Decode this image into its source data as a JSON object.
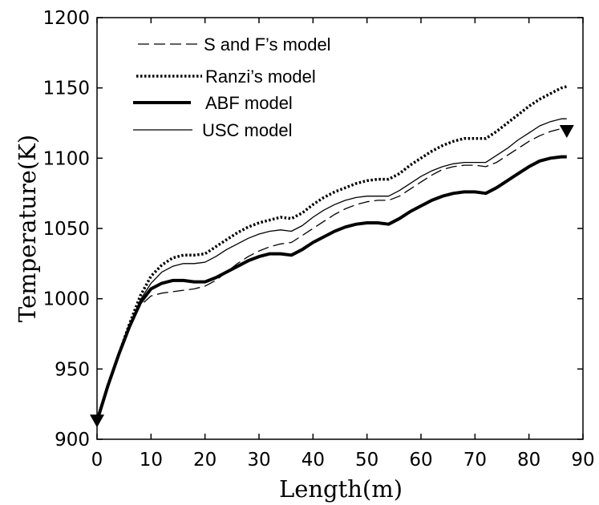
{
  "chart_data": {
    "type": "line",
    "xlabel": "Length(m)",
    "ylabel": "Temperature(K)",
    "xlim": [
      0,
      90
    ],
    "ylim": [
      900,
      1200
    ],
    "x_ticks": [
      0,
      10,
      20,
      30,
      40,
      50,
      60,
      70,
      80,
      90
    ],
    "y_ticks": [
      900,
      950,
      1000,
      1050,
      1100,
      1150,
      1200
    ],
    "grid": false,
    "legend_position": "top-left",
    "series": [
      {
        "name": "S and F’s model",
        "style": "dashed",
        "x": [
          0,
          2,
          4,
          6,
          8,
          10,
          12,
          14,
          16,
          18,
          20,
          22,
          24,
          26,
          28,
          30,
          32,
          34,
          36,
          38,
          40,
          42,
          44,
          46,
          48,
          50,
          52,
          54,
          56,
          58,
          60,
          62,
          64,
          66,
          68,
          70,
          72,
          74,
          76,
          78,
          80,
          82,
          84,
          86,
          87
        ],
        "y": [
          913,
          938,
          960,
          980,
          995,
          1002,
          1004,
          1005,
          1006,
          1007,
          1009,
          1013,
          1019,
          1025,
          1030,
          1034,
          1037,
          1039,
          1040,
          1045,
          1050,
          1055,
          1060,
          1064,
          1067,
          1069,
          1070,
          1070,
          1073,
          1078,
          1083,
          1088,
          1092,
          1094,
          1095,
          1095,
          1094,
          1097,
          1102,
          1107,
          1112,
          1116,
          1119,
          1121,
          1121
        ]
      },
      {
        "name": "Ranzi’s model",
        "style": "dotted",
        "x": [
          0,
          2,
          4,
          6,
          8,
          10,
          12,
          14,
          16,
          18,
          20,
          22,
          24,
          26,
          28,
          30,
          32,
          34,
          36,
          38,
          40,
          42,
          44,
          46,
          48,
          50,
          52,
          54,
          56,
          58,
          60,
          62,
          64,
          66,
          68,
          70,
          72,
          74,
          76,
          78,
          80,
          82,
          84,
          86,
          87
        ],
        "y": [
          913,
          938,
          960,
          982,
          1002,
          1016,
          1024,
          1029,
          1031,
          1031,
          1032,
          1037,
          1042,
          1047,
          1051,
          1054,
          1056,
          1058,
          1057,
          1061,
          1067,
          1072,
          1076,
          1079,
          1082,
          1084,
          1085,
          1085,
          1089,
          1095,
          1100,
          1105,
          1109,
          1112,
          1114,
          1114,
          1114,
          1119,
          1125,
          1131,
          1137,
          1142,
          1146,
          1150,
          1151
        ]
      },
      {
        "name": "ABF model",
        "style": "bold",
        "x": [
          0,
          2,
          4,
          6,
          8,
          10,
          12,
          14,
          16,
          18,
          20,
          22,
          24,
          26,
          28,
          30,
          32,
          34,
          36,
          38,
          40,
          42,
          44,
          46,
          48,
          50,
          52,
          54,
          56,
          58,
          60,
          62,
          64,
          66,
          68,
          70,
          72,
          74,
          76,
          78,
          80,
          82,
          84,
          86,
          87
        ],
        "y": [
          913,
          938,
          960,
          980,
          997,
          1007,
          1011,
          1013,
          1013,
          1012,
          1012,
          1015,
          1019,
          1023,
          1027,
          1030,
          1032,
          1032,
          1031,
          1035,
          1040,
          1044,
          1048,
          1051,
          1053,
          1054,
          1054,
          1053,
          1057,
          1062,
          1066,
          1070,
          1073,
          1075,
          1076,
          1076,
          1075,
          1079,
          1084,
          1089,
          1094,
          1098,
          1100,
          1101,
          1101
        ]
      },
      {
        "name": "USC model",
        "style": "solid",
        "x": [
          0,
          2,
          4,
          6,
          8,
          10,
          12,
          14,
          16,
          18,
          20,
          22,
          24,
          26,
          28,
          30,
          32,
          34,
          36,
          38,
          40,
          42,
          44,
          46,
          48,
          50,
          52,
          54,
          56,
          58,
          60,
          62,
          64,
          66,
          68,
          70,
          72,
          74,
          76,
          78,
          80,
          82,
          84,
          86,
          87
        ],
        "y": [
          913,
          938,
          960,
          981,
          999,
          1011,
          1019,
          1023,
          1025,
          1025,
          1026,
          1030,
          1035,
          1039,
          1043,
          1046,
          1048,
          1049,
          1048,
          1052,
          1058,
          1063,
          1067,
          1070,
          1072,
          1073,
          1073,
          1073,
          1077,
          1082,
          1087,
          1091,
          1094,
          1096,
          1097,
          1097,
          1097,
          1102,
          1107,
          1113,
          1118,
          1123,
          1126,
          1128,
          1128
        ]
      }
    ],
    "markers": [
      {
        "shape": "triangle-down",
        "x": 0,
        "y": 913
      },
      {
        "shape": "triangle-down",
        "x": 87,
        "y": 1119
      }
    ]
  }
}
